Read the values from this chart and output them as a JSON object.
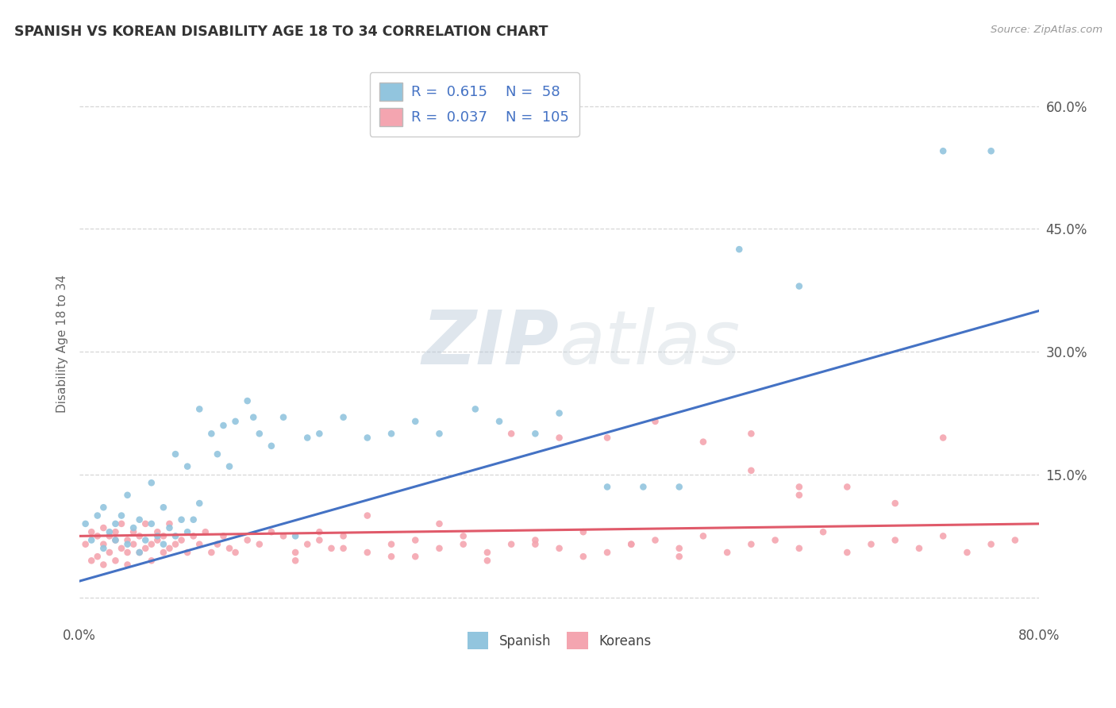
{
  "title": "SPANISH VS KOREAN DISABILITY AGE 18 TO 34 CORRELATION CHART",
  "source": "Source: ZipAtlas.com",
  "ylabel": "Disability Age 18 to 34",
  "xlim": [
    0.0,
    0.8
  ],
  "ylim": [
    -0.03,
    0.65
  ],
  "ytick_positions": [
    0.0,
    0.15,
    0.3,
    0.45,
    0.6
  ],
  "ytick_labels": [
    "",
    "15.0%",
    "30.0%",
    "45.0%",
    "60.0%"
  ],
  "spanish_color": "#92c5de",
  "korean_color": "#f4a5b0",
  "spanish_line_color": "#4472c4",
  "korean_line_color": "#e05a6a",
  "R_spanish": 0.615,
  "N_spanish": 58,
  "R_korean": 0.037,
  "N_korean": 105,
  "watermark_zip": "ZIP",
  "watermark_atlas": "atlas",
  "spanish_x": [
    0.005,
    0.01,
    0.015,
    0.02,
    0.02,
    0.025,
    0.03,
    0.03,
    0.035,
    0.04,
    0.04,
    0.045,
    0.05,
    0.05,
    0.055,
    0.06,
    0.06,
    0.065,
    0.07,
    0.07,
    0.075,
    0.08,
    0.08,
    0.085,
    0.09,
    0.09,
    0.095,
    0.1,
    0.1,
    0.11,
    0.115,
    0.12,
    0.125,
    0.13,
    0.14,
    0.145,
    0.15,
    0.16,
    0.17,
    0.18,
    0.19,
    0.2,
    0.22,
    0.24,
    0.26,
    0.28,
    0.3,
    0.33,
    0.35,
    0.38,
    0.4,
    0.44,
    0.47,
    0.5,
    0.55,
    0.6,
    0.72,
    0.76
  ],
  "spanish_y": [
    0.09,
    0.07,
    0.1,
    0.06,
    0.11,
    0.08,
    0.09,
    0.07,
    0.1,
    0.065,
    0.125,
    0.085,
    0.055,
    0.095,
    0.07,
    0.09,
    0.14,
    0.075,
    0.065,
    0.11,
    0.085,
    0.075,
    0.175,
    0.095,
    0.08,
    0.16,
    0.095,
    0.115,
    0.23,
    0.2,
    0.175,
    0.21,
    0.16,
    0.215,
    0.24,
    0.22,
    0.2,
    0.185,
    0.22,
    0.075,
    0.195,
    0.2,
    0.22,
    0.195,
    0.2,
    0.215,
    0.2,
    0.23,
    0.215,
    0.2,
    0.225,
    0.135,
    0.135,
    0.135,
    0.425,
    0.38,
    0.545,
    0.545
  ],
  "korean_x": [
    0.005,
    0.01,
    0.01,
    0.015,
    0.015,
    0.02,
    0.02,
    0.02,
    0.025,
    0.025,
    0.03,
    0.03,
    0.03,
    0.035,
    0.035,
    0.04,
    0.04,
    0.04,
    0.045,
    0.045,
    0.05,
    0.05,
    0.055,
    0.055,
    0.06,
    0.06,
    0.065,
    0.065,
    0.07,
    0.07,
    0.075,
    0.075,
    0.08,
    0.085,
    0.09,
    0.095,
    0.1,
    0.105,
    0.11,
    0.115,
    0.12,
    0.125,
    0.13,
    0.14,
    0.15,
    0.16,
    0.17,
    0.18,
    0.19,
    0.2,
    0.21,
    0.22,
    0.24,
    0.26,
    0.28,
    0.3,
    0.32,
    0.34,
    0.36,
    0.38,
    0.4,
    0.42,
    0.44,
    0.46,
    0.48,
    0.5,
    0.52,
    0.54,
    0.56,
    0.58,
    0.6,
    0.62,
    0.64,
    0.66,
    0.68,
    0.7,
    0.72,
    0.74,
    0.76,
    0.78,
    0.44,
    0.48,
    0.52,
    0.56,
    0.36,
    0.4,
    0.6,
    0.64,
    0.68,
    0.72,
    0.56,
    0.6,
    0.24,
    0.28,
    0.32,
    0.18,
    0.2,
    0.22,
    0.26,
    0.3,
    0.34,
    0.38,
    0.42,
    0.46,
    0.5
  ],
  "korean_y": [
    0.065,
    0.08,
    0.045,
    0.075,
    0.05,
    0.065,
    0.04,
    0.085,
    0.055,
    0.075,
    0.07,
    0.045,
    0.08,
    0.06,
    0.09,
    0.055,
    0.07,
    0.04,
    0.065,
    0.08,
    0.055,
    0.075,
    0.06,
    0.09,
    0.065,
    0.045,
    0.07,
    0.08,
    0.055,
    0.075,
    0.06,
    0.09,
    0.065,
    0.07,
    0.055,
    0.075,
    0.065,
    0.08,
    0.055,
    0.065,
    0.075,
    0.06,
    0.055,
    0.07,
    0.065,
    0.08,
    0.075,
    0.055,
    0.065,
    0.07,
    0.06,
    0.075,
    0.055,
    0.065,
    0.07,
    0.06,
    0.075,
    0.055,
    0.065,
    0.07,
    0.06,
    0.08,
    0.055,
    0.065,
    0.07,
    0.06,
    0.075,
    0.055,
    0.065,
    0.07,
    0.06,
    0.08,
    0.055,
    0.065,
    0.07,
    0.06,
    0.075,
    0.055,
    0.065,
    0.07,
    0.195,
    0.215,
    0.19,
    0.2,
    0.2,
    0.195,
    0.135,
    0.135,
    0.115,
    0.195,
    0.155,
    0.125,
    0.1,
    0.05,
    0.065,
    0.045,
    0.08,
    0.06,
    0.05,
    0.09,
    0.045,
    0.065,
    0.05,
    0.065,
    0.05
  ]
}
